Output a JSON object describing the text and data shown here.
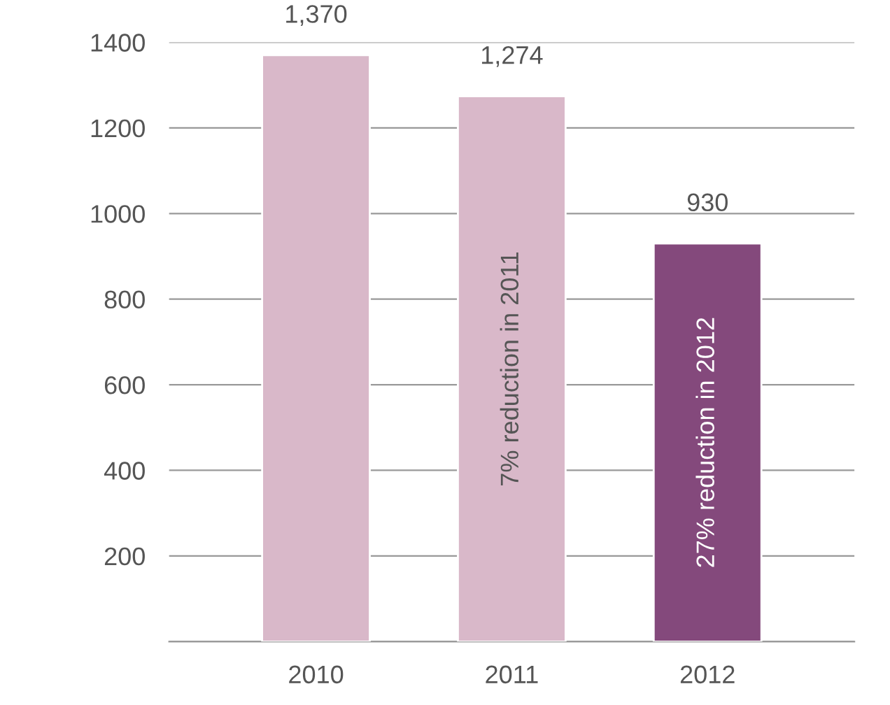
{
  "chart_data": {
    "type": "bar",
    "categories": [
      "2010",
      "2011",
      "2012"
    ],
    "values": [
      1370,
      1274,
      930
    ],
    "colors": [
      "#d9b8c9",
      "#d9b8c9",
      "#84497c"
    ],
    "value_labels": [
      "1,370",
      "1,274",
      "930"
    ],
    "ylim": [
      0,
      1400
    ],
    "yticks": [
      {
        "value": 0,
        "label": null
      },
      200,
      400,
      600,
      800,
      1000,
      1200,
      1400
    ],
    "grid": "y",
    "annotations": [
      "7% reduction in 2011",
      "27% reduction in 2012"
    ]
  }
}
